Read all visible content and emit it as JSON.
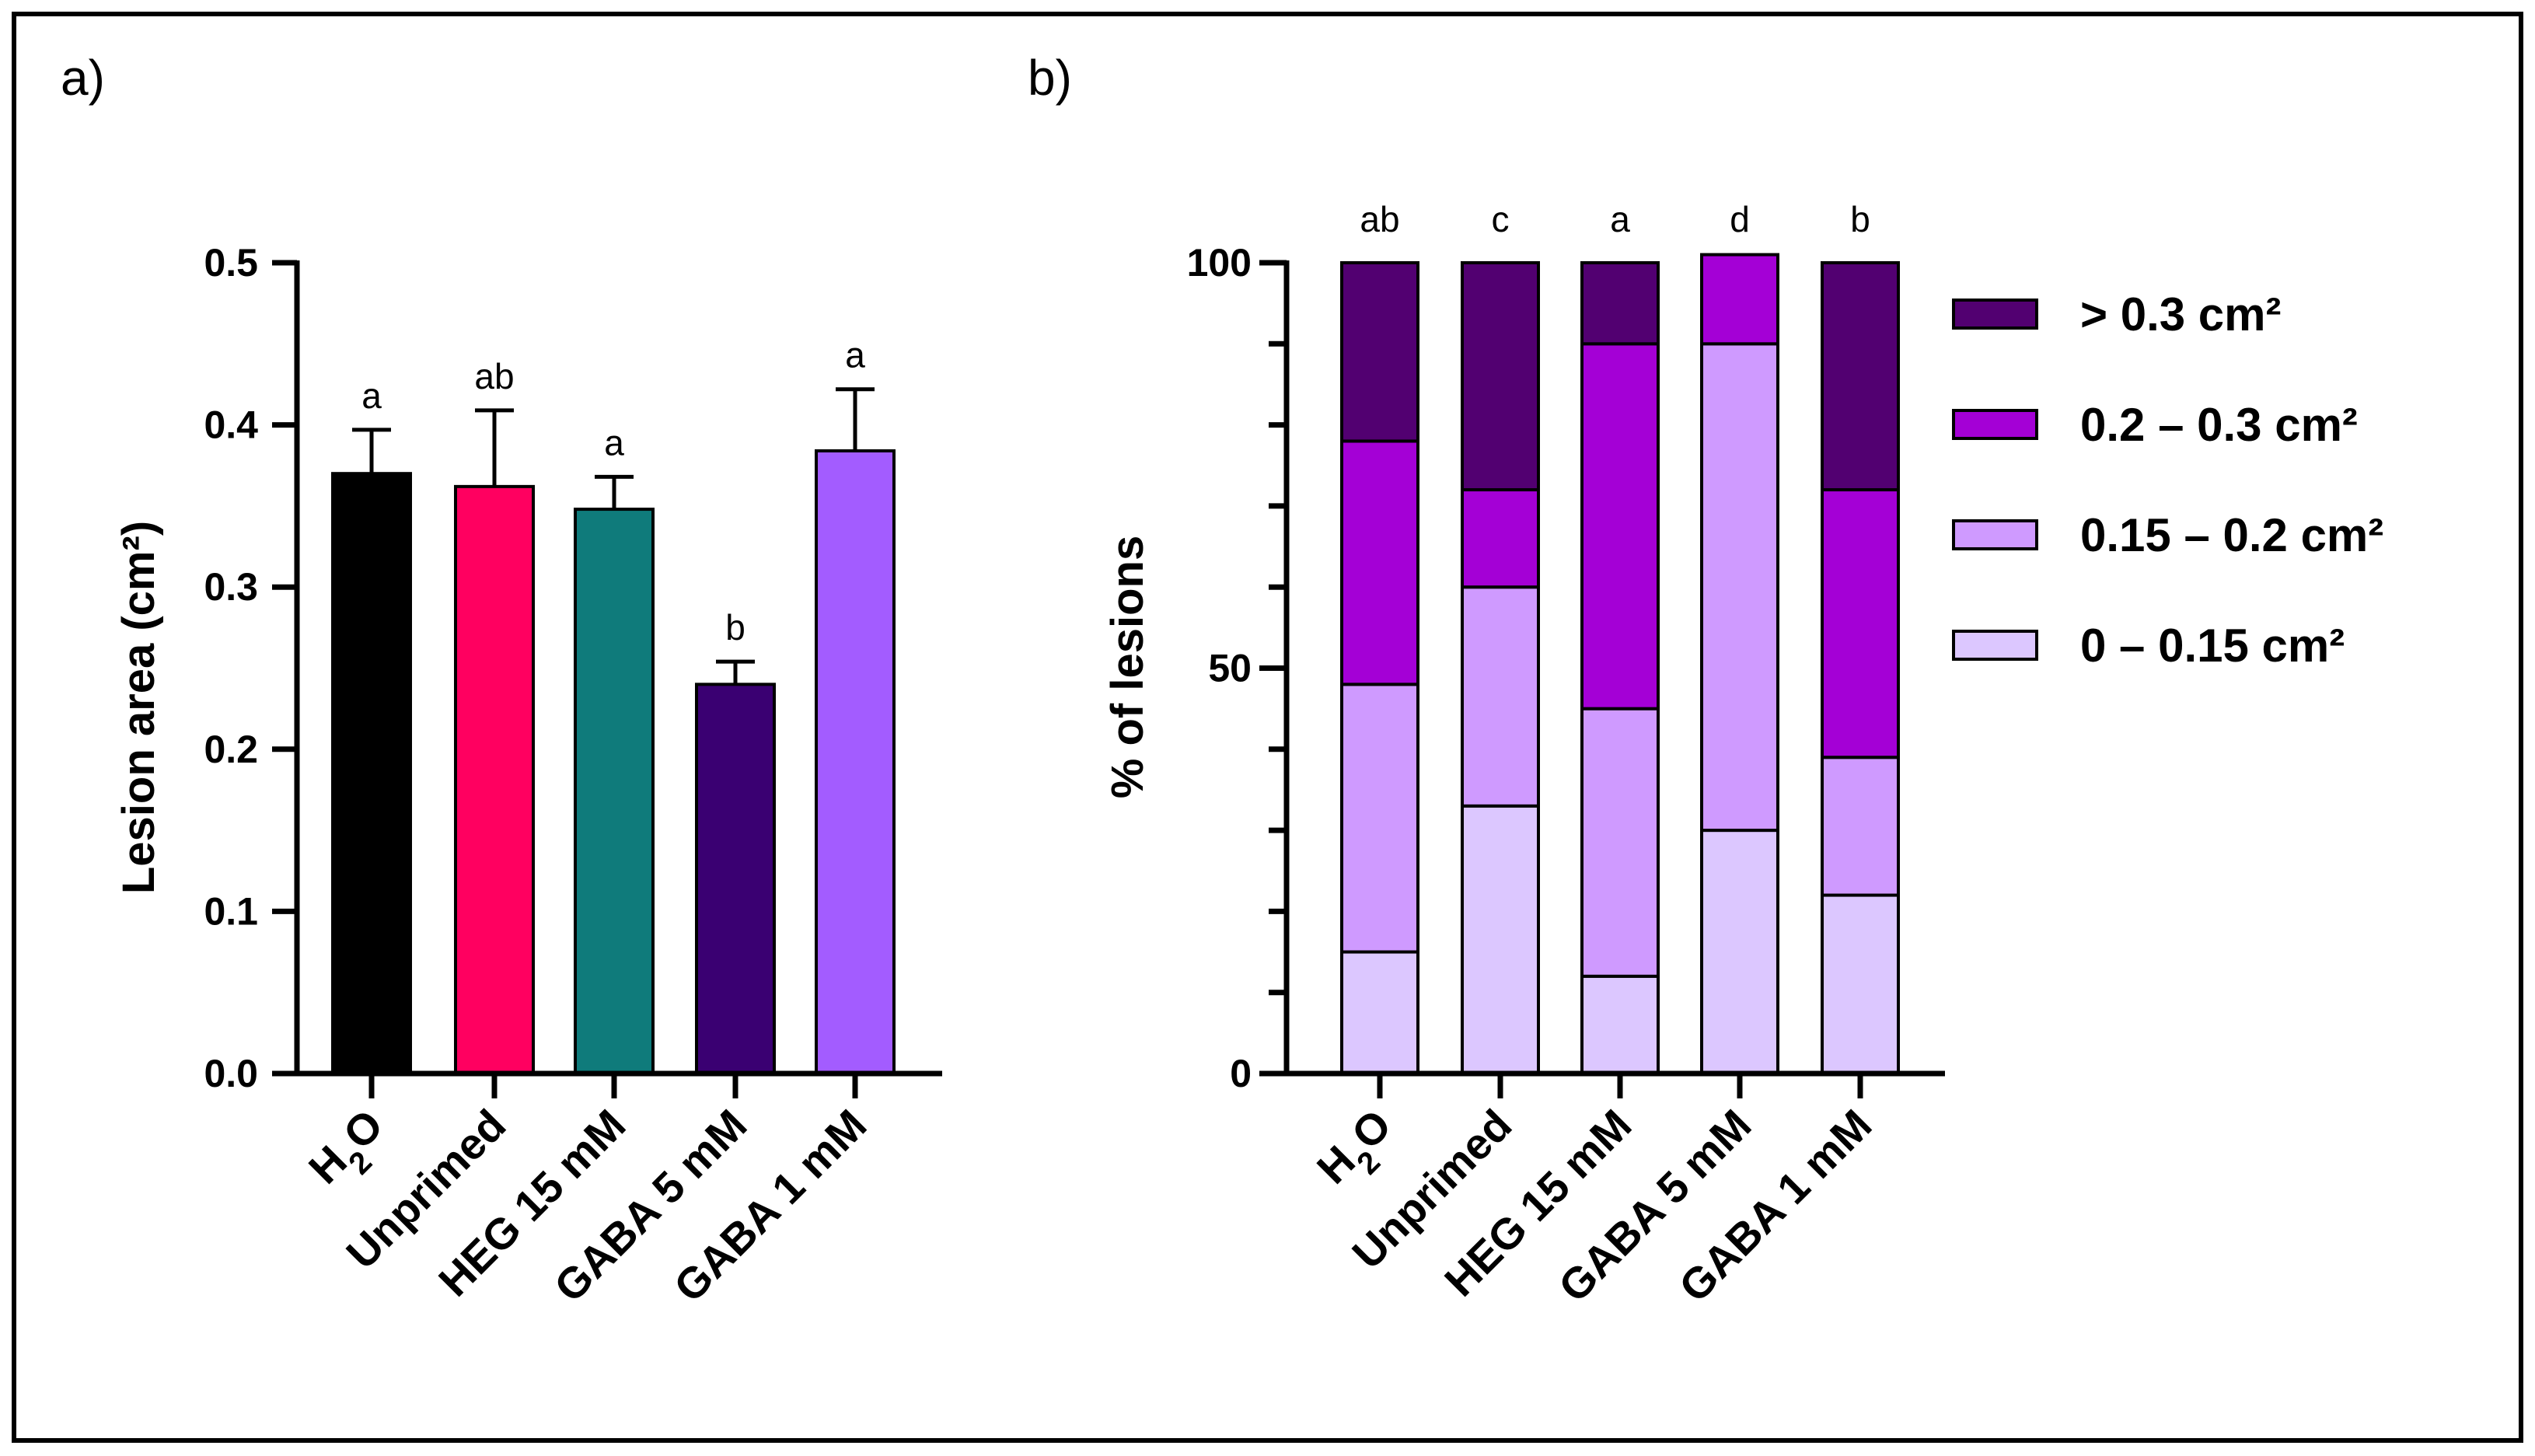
{
  "chart_data": [
    {
      "panel": "a)",
      "type": "bar",
      "ylabel": "Lesion area (cm²)",
      "xlabel": "",
      "ylim": [
        0,
        0.5
      ],
      "yticks": [
        "0.0",
        "0.1",
        "0.2",
        "0.3",
        "0.4",
        "0.5"
      ],
      "categories": [
        {
          "base": "H",
          "sub": "2",
          "tail": "O"
        },
        {
          "base": "Unprimed",
          "sub": "",
          "tail": ""
        },
        {
          "base": "HEG 15 mM",
          "sub": "",
          "tail": ""
        },
        {
          "base": "GABA 5 mM",
          "sub": "",
          "tail": ""
        },
        {
          "base": "GABA 1 mM",
          "sub": "",
          "tail": ""
        }
      ],
      "values": [
        0.37,
        0.362,
        0.348,
        0.24,
        0.384
      ],
      "errors": [
        0.027,
        0.047,
        0.02,
        0.014,
        0.038
      ],
      "significance": [
        "a",
        "ab",
        "a",
        "b",
        "a"
      ],
      "colors": [
        "#000000",
        "#ff0060",
        "#0f7b7b",
        "#3a0072",
        "#a35cff"
      ]
    },
    {
      "panel": "b)",
      "type": "bar",
      "stacked": true,
      "ylabel": "% of lesions",
      "xlabel": "",
      "ylim": [
        0,
        100
      ],
      "yticks": [
        "0",
        "50",
        "100"
      ],
      "categories": [
        {
          "base": "H",
          "sub": "2",
          "tail": "O"
        },
        {
          "base": "Unprimed",
          "sub": "",
          "tail": ""
        },
        {
          "base": "HEG 15 mM",
          "sub": "",
          "tail": ""
        },
        {
          "base": "GABA 5 mM",
          "sub": "",
          "tail": ""
        },
        {
          "base": "GABA 1 mM",
          "sub": "",
          "tail": ""
        }
      ],
      "significance": [
        "ab",
        "c",
        "a",
        "d",
        "b"
      ],
      "series": [
        {
          "name": "0 – 0.15 cm²",
          "color": "#dcc7ff",
          "values": [
            15,
            33,
            12,
            30,
            22
          ]
        },
        {
          "name": "0.15 – 0.2 cm²",
          "color": "#cf9aff",
          "values": [
            33,
            27,
            33,
            60,
            17
          ]
        },
        {
          "name": "0.2 – 0.3 cm²",
          "color": "#a400d6",
          "values": [
            30,
            12,
            45,
            11,
            33
          ]
        },
        {
          "name": "> 0.3 cm²",
          "color": "#520071",
          "values": [
            22,
            28,
            10,
            0,
            28
          ]
        }
      ],
      "legend": {
        "position": "right",
        "order": [
          "> 0.3 cm²",
          "0.2 – 0.3 cm²",
          "0.15 – 0.2 cm²",
          "0 – 0.15 cm²"
        ]
      }
    }
  ]
}
